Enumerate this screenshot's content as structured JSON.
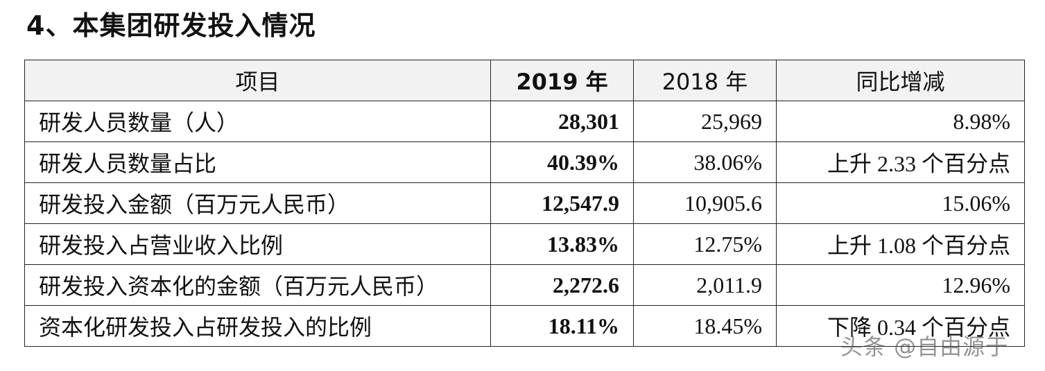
{
  "heading": "4、本集团研发投入情况",
  "table": {
    "headers": [
      "项目",
      "2019 年",
      "2018 年",
      "同比增减"
    ],
    "rows": [
      {
        "item": "研发人员数量（人）",
        "y2019": "28,301",
        "y2018": "25,969",
        "change": "8.98%"
      },
      {
        "item": "研发人员数量占比",
        "y2019": "40.39%",
        "y2018": "38.06%",
        "change": "上升 2.33 个百分点"
      },
      {
        "item": "研发投入金额（百万元人民币）",
        "y2019": "12,547.9",
        "y2018": "10,905.6",
        "change": "15.06%"
      },
      {
        "item": "研发投入占营业收入比例",
        "y2019": "13.83%",
        "y2018": "12.75%",
        "change": "上升 1.08 个百分点"
      },
      {
        "item": "研发投入资本化的金额（百万元人民币）",
        "y2019": "2,272.6",
        "y2018": "2,011.9",
        "change": "12.96%"
      },
      {
        "item": "资本化研发投入占研发投入的比例",
        "y2019": "18.11%",
        "y2018": "18.45%",
        "change": "下降 0.34 个百分点"
      }
    ]
  },
  "watermark": "头条 @自由源于"
}
